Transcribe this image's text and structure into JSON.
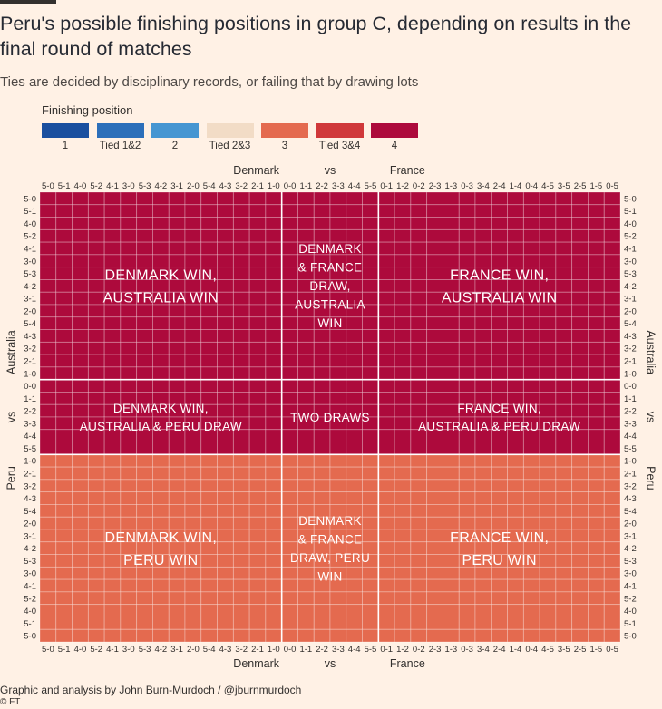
{
  "title": "Peru's possible finishing positions in group C, depending on results in the final round of matches",
  "subtitle": "Ties are decided by disciplinary records, or failing that by drawing lots",
  "legend": {
    "title": "Finishing position",
    "items": [
      {
        "label": "1",
        "color": "#1a4f9f"
      },
      {
        "label": "Tied 1&2",
        "color": "#2c6fba"
      },
      {
        "label": "2",
        "color": "#4696d2"
      },
      {
        "label": "Tied 2&3",
        "color": "#f2dcc6"
      },
      {
        "label": "3",
        "color": "#e46a4f"
      },
      {
        "label": "Tied 3&4",
        "color": "#d0383a"
      },
      {
        "label": "4",
        "color": "#ad0a3c"
      }
    ]
  },
  "credit": "Graphic and analysis by John Burn-Murdoch / @jburnmurdoch",
  "source": "© FT",
  "chart_data": {
    "type": "heatmap",
    "x_axis": {
      "label_left": "Denmark",
      "label_mid": "vs",
      "label_right": "France",
      "ticks": [
        "5-0",
        "5-1",
        "4-0",
        "5-2",
        "4-1",
        "3-0",
        "5-3",
        "4-2",
        "3-1",
        "2-0",
        "5-4",
        "4-3",
        "3-2",
        "2-1",
        "1-0",
        "0-0",
        "1-1",
        "2-2",
        "3-3",
        "4-4",
        "5-5",
        "0-1",
        "1-2",
        "0-2",
        "2-3",
        "1-3",
        "0-3",
        "3-4",
        "2-4",
        "1-4",
        "0-4",
        "4-5",
        "3-5",
        "2-5",
        "1-5",
        "0-5"
      ]
    },
    "y_axis": {
      "label_top": "Australia",
      "label_mid": "vs",
      "label_bottom": "Peru",
      "ticks": [
        "5-0",
        "5-1",
        "4-0",
        "5-2",
        "4-1",
        "3-0",
        "5-3",
        "4-2",
        "3-1",
        "2-0",
        "5-4",
        "4-3",
        "3-2",
        "2-1",
        "1-0",
        "0-0",
        "1-1",
        "2-2",
        "3-3",
        "4-4",
        "5-5",
        "1-0",
        "2-1",
        "3-2",
        "4-3",
        "5-4",
        "2-0",
        "3-1",
        "4-2",
        "5-3",
        "3-0",
        "4-1",
        "5-2",
        "4-0",
        "5-1",
        "5-0"
      ]
    },
    "column_groups": [
      {
        "name": "denmark-win",
        "count": 15
      },
      {
        "name": "draw",
        "count": 6
      },
      {
        "name": "france-win",
        "count": 15
      }
    ],
    "row_groups": [
      {
        "name": "australia-win",
        "count": 15,
        "position": "4"
      },
      {
        "name": "draw",
        "count": 6,
        "position": "4"
      },
      {
        "name": "peru-win",
        "count": 15,
        "position": "3"
      }
    ],
    "regions": [
      {
        "id": "dk-win-au-win",
        "col_group": 0,
        "row_group": 0,
        "lines": [
          "DENMARK WIN,",
          "AUSTRALIA WIN"
        ]
      },
      {
        "id": "draw-au-win",
        "col_group": 1,
        "row_group": 0,
        "lines": [
          "DENMARK",
          "& FRANCE",
          "DRAW,",
          "AUSTRALIA",
          "WIN"
        ]
      },
      {
        "id": "fr-win-au-win",
        "col_group": 2,
        "row_group": 0,
        "lines": [
          "FRANCE WIN,",
          "AUSTRALIA WIN"
        ]
      },
      {
        "id": "dk-win-draw",
        "col_group": 0,
        "row_group": 1,
        "lines": [
          "DENMARK WIN,",
          "AUSTRALIA & PERU DRAW"
        ]
      },
      {
        "id": "two-draws",
        "col_group": 1,
        "row_group": 1,
        "lines": [
          "TWO DRAWS"
        ]
      },
      {
        "id": "fr-win-draw",
        "col_group": 2,
        "row_group": 1,
        "lines": [
          "FRANCE WIN,",
          "AUSTRALIA & PERU DRAW"
        ]
      },
      {
        "id": "dk-win-pe-win",
        "col_group": 0,
        "row_group": 2,
        "lines": [
          "DENMARK WIN,",
          "PERU WIN"
        ]
      },
      {
        "id": "draw-pe-win",
        "col_group": 1,
        "row_group": 2,
        "lines": [
          "DENMARK",
          "& FRANCE",
          "DRAW, PERU",
          "WIN"
        ]
      },
      {
        "id": "fr-win-pe-win",
        "col_group": 2,
        "row_group": 2,
        "lines": [
          "FRANCE WIN,",
          "PERU WIN"
        ]
      }
    ]
  }
}
